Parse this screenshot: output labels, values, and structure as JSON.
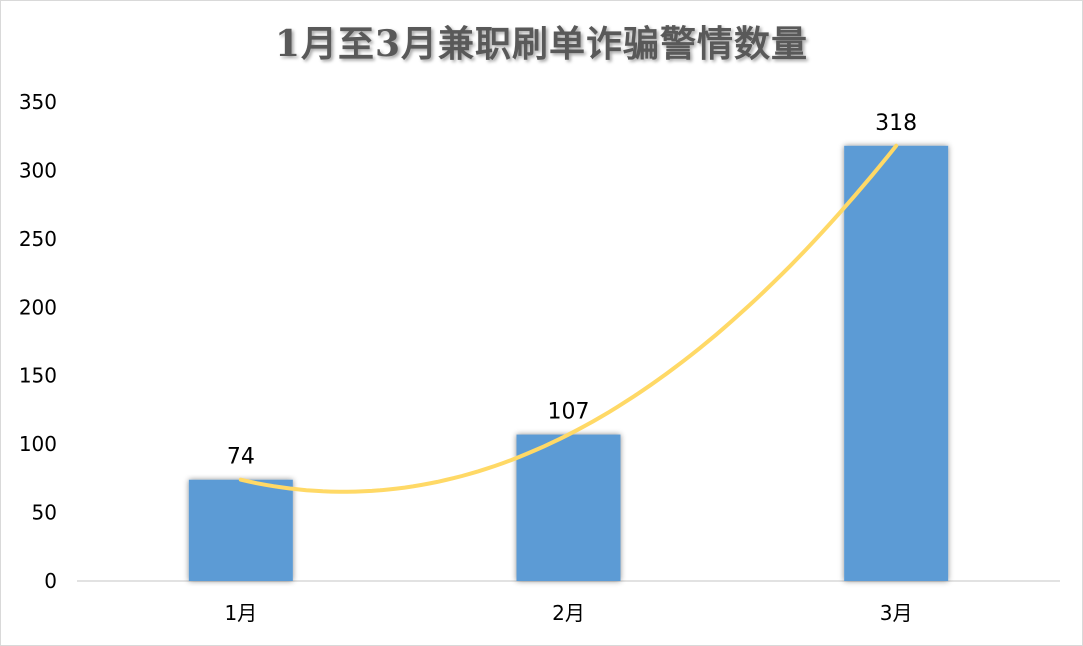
{
  "chart_data": {
    "type": "bar",
    "title": "1月至3月兼职刷单诈骗警情数量",
    "categories": [
      "1月",
      "2月",
      "3月"
    ],
    "values": [
      74,
      107,
      318
    ],
    "data_labels": [
      "74",
      "107",
      "318"
    ],
    "ylim": [
      0,
      350
    ],
    "yticks": [
      0,
      50,
      100,
      150,
      200,
      250,
      300,
      350
    ],
    "xlabel": "",
    "ylabel": "",
    "grid": false,
    "legend": "none",
    "trendline": {
      "type": "polynomial",
      "order": 2
    },
    "colors": {
      "bar": "#5b9bd5",
      "trendline": "#ffd966",
      "axis": "#d9d9d9"
    }
  }
}
